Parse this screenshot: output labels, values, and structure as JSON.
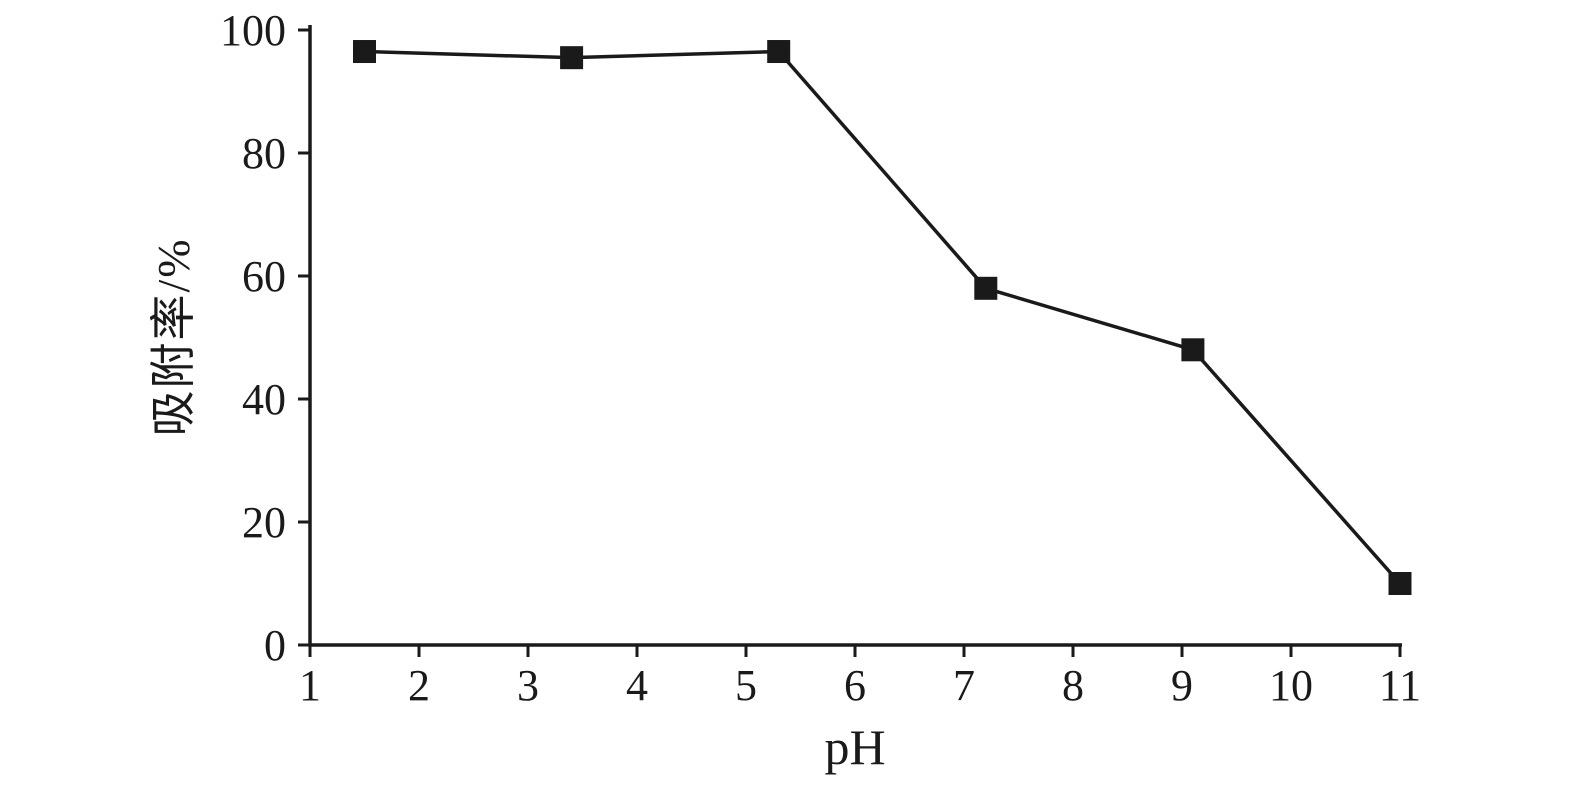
{
  "figure": {
    "background": "#ffffff",
    "axis_color": "#1a1a1a"
  },
  "chart_data": {
    "type": "line",
    "x": [
      1.5,
      3.4,
      5.3,
      7.2,
      9.1,
      11.0
    ],
    "values": [
      96.5,
      95.5,
      96.5,
      58,
      48,
      10
    ],
    "series_name": "吸附率",
    "title": "",
    "xlabel": "pH",
    "ylabel": "吸附率/%",
    "xlim": [
      1,
      11
    ],
    "ylim": [
      0,
      100
    ],
    "x_ticks": [
      1,
      2,
      3,
      4,
      5,
      6,
      7,
      8,
      9,
      10,
      11
    ],
    "y_ticks": [
      0,
      20,
      40,
      60,
      80,
      100
    ],
    "grid": false,
    "legend": "none",
    "marker": "square",
    "marker_size": 23,
    "line_color": "#1a1a1a",
    "line_width": 3.5
  }
}
